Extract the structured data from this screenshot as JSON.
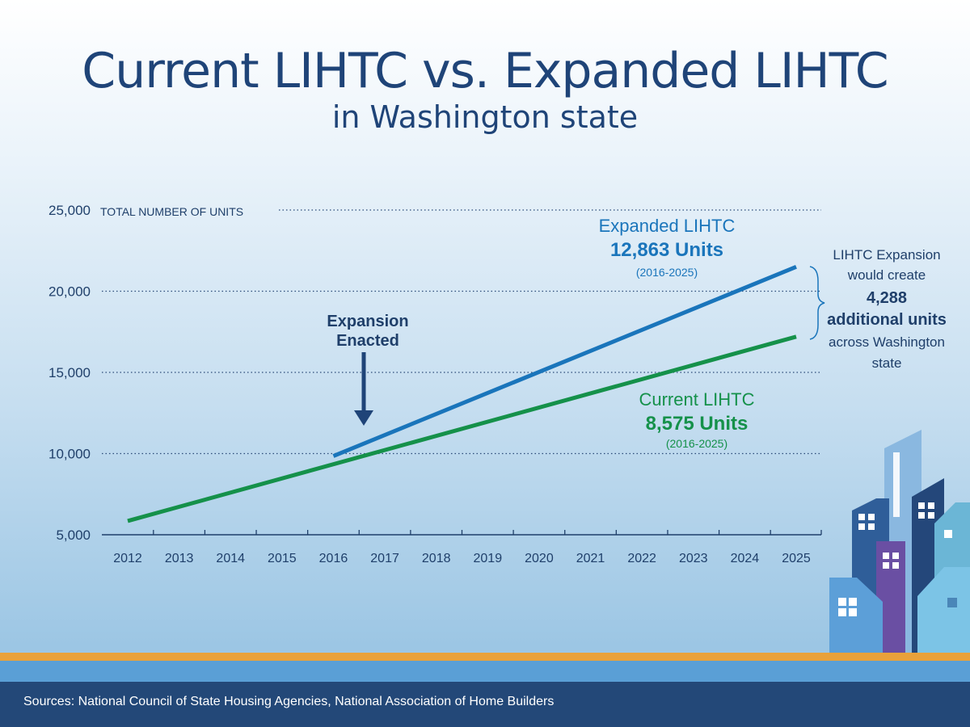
{
  "title": "Current LIHTC vs. Expanded LIHTC",
  "subtitle": "in Washington state",
  "sources": "Sources: National Council of State Housing Agencies, National Association of Home Builders",
  "chart_data": {
    "type": "line",
    "ylabel": "TOTAL NUMBER OF UNITS",
    "ylim": [
      5000,
      25000
    ],
    "yticks": [
      "5,000",
      "10,000",
      "15,000",
      "20,000",
      "25,000"
    ],
    "ytick_values": [
      5000,
      10000,
      15000,
      20000,
      25000
    ],
    "x": [
      "2012",
      "2013",
      "2014",
      "2015",
      "2016",
      "2017",
      "2018",
      "2019",
      "2020",
      "2021",
      "2022",
      "2023",
      "2024",
      "2025"
    ],
    "series": [
      {
        "name": "Current LIHTC",
        "color": "#15914a",
        "x": [
          2012,
          2025
        ],
        "y": [
          5850,
          17200
        ]
      },
      {
        "name": "Expanded LIHTC",
        "color": "#1a75bb",
        "x": [
          2016,
          2025
        ],
        "y": [
          9850,
          21500
        ]
      }
    ],
    "annotations": {
      "expanded": {
        "name": "Expanded LIHTC",
        "units": "12,863 Units",
        "range": "(2016-2025)"
      },
      "current": {
        "name": "Current LIHTC",
        "units": "8,575 Units",
        "range": "(2016-2025)"
      },
      "enacted": {
        "line1": "Expansion",
        "line2": "Enacted",
        "year": 2016.5
      },
      "side": {
        "line1": "LIHTC Expansion",
        "line2": "would create",
        "line3": "4,288",
        "line4": "additional units",
        "line5": "across Washington",
        "line6": "state"
      }
    }
  }
}
